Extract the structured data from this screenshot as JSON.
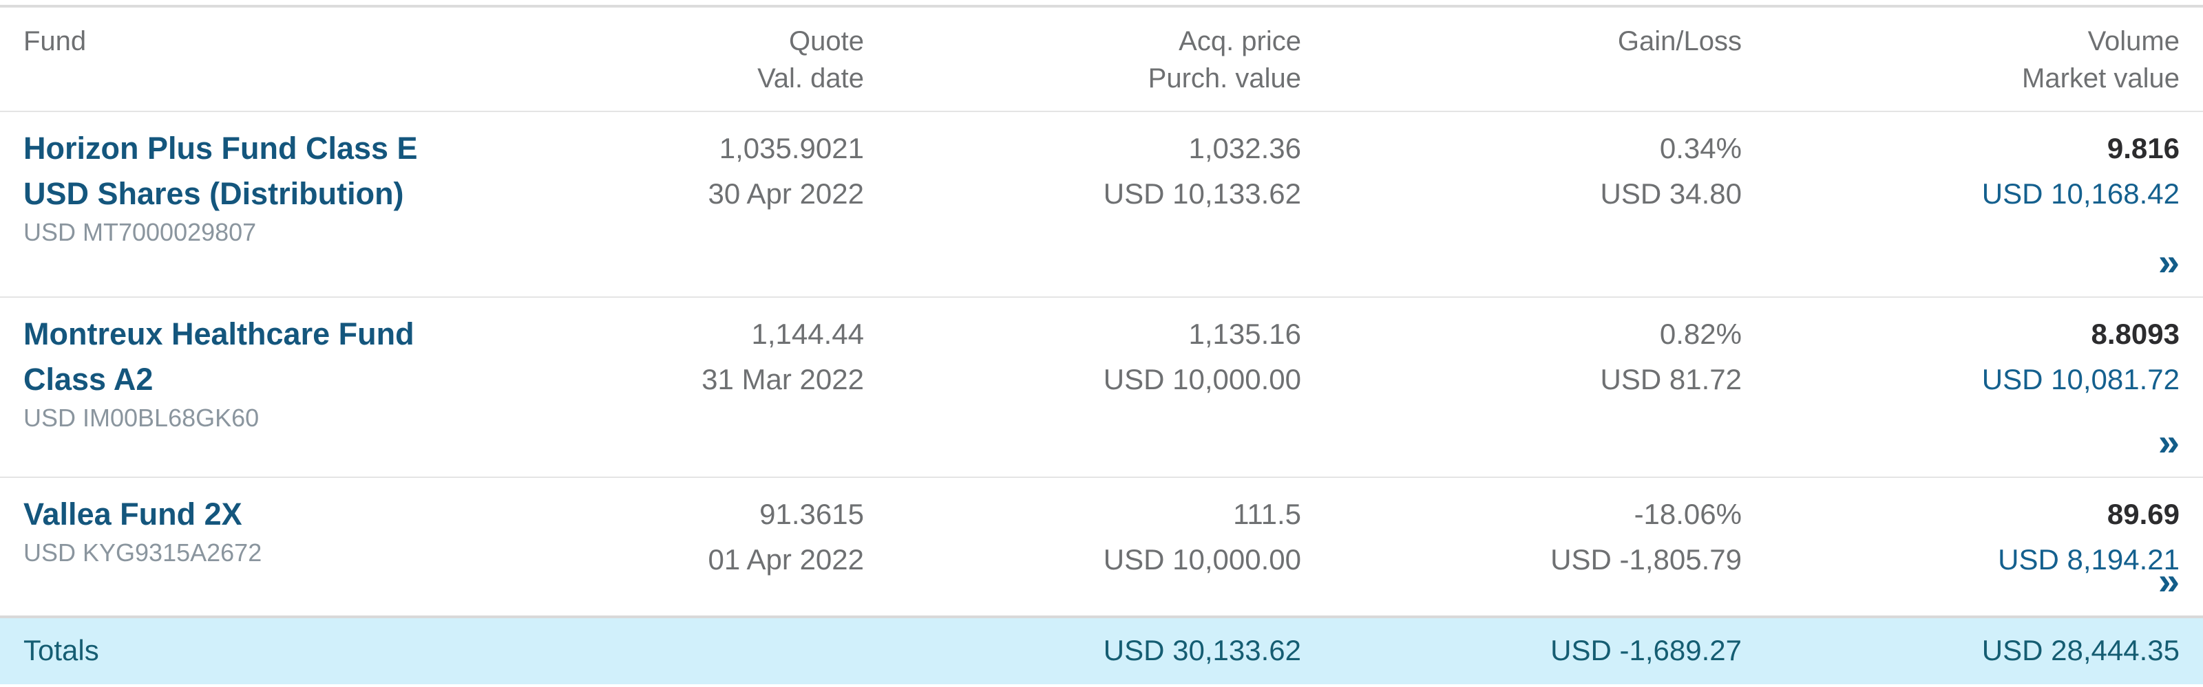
{
  "colors": {
    "fund_name_blue": "#14567d",
    "link_blue": "#14608e",
    "chevron_blue": "#135d89",
    "text_gray": "#6e7072",
    "isin_gray": "#8a959e",
    "volume_dark": "#2c2c2e",
    "totals_text": "#155d72",
    "totals_background": "#d1f0fb",
    "separator_gray": "#e4e4e4"
  },
  "table": {
    "headers": {
      "fund": "Fund",
      "quote_line1": "Quote",
      "quote_line2": "Val. date",
      "acq_line1": "Acq. price",
      "acq_line2": "Purch. value",
      "gain": "Gain/Loss",
      "volume_line1": "Volume",
      "volume_line2": "Market value"
    },
    "rows": [
      {
        "name_line1": "Horizon Plus Fund Class E",
        "name_line2": "USD Shares (Distribution)",
        "isin": "USD MT7000029807",
        "quote": "1,035.9021",
        "val_date": "30 Apr 2022",
        "acq_price": "1,032.36",
        "purch_value": "USD 10,133.62",
        "gain_pct": "0.34%",
        "gain_value": "USD 34.80",
        "volume": "9.816",
        "market_value": "USD 10,168.42",
        "expand_icon": "»"
      },
      {
        "name_line1": "Montreux Healthcare Fund",
        "name_line2": "Class A2",
        "isin": "USD IM00BL68GK60",
        "quote": "1,144.44",
        "val_date": "31 Mar 2022",
        "acq_price": "1,135.16",
        "purch_value": "USD 10,000.00",
        "gain_pct": "0.82%",
        "gain_value": "USD 81.72",
        "volume": "8.8093",
        "market_value": "USD 10,081.72",
        "expand_icon": "»"
      },
      {
        "name_line1": "Vallea Fund 2X",
        "isin": "USD KYG9315A2672",
        "quote": "91.3615",
        "val_date": "01 Apr 2022",
        "acq_price": "111.5",
        "purch_value": "USD 10,000.00",
        "gain_pct": "-18.06%",
        "gain_value": "USD -1,805.79",
        "volume": "89.69",
        "market_value": "USD 8,194.21",
        "expand_icon": "»"
      }
    ],
    "totals": {
      "label": "Totals",
      "purch_value": "USD 30,133.62",
      "gain_value": "USD -1,689.27",
      "market_value": "USD 28,444.35"
    }
  }
}
